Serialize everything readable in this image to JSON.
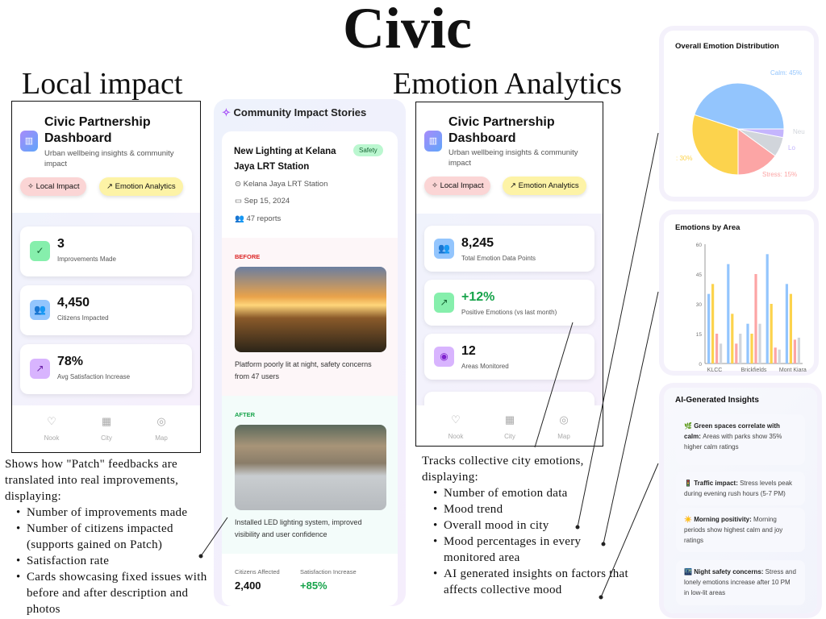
{
  "poster": {
    "title": "Civic",
    "section_local": "Local impact",
    "section_emotion": "Emotion Analytics"
  },
  "app": {
    "title": "Civic Partnership Dashboard",
    "subtitle": "Urban wellbeing insights & community impact",
    "tabs": [
      {
        "label": "Local Impact",
        "icon": "sparkle-icon"
      },
      {
        "label": "Emotion Analytics",
        "icon": "trending-up-icon"
      }
    ],
    "nav": [
      {
        "label": "Nook",
        "icon": "heart-icon"
      },
      {
        "label": "City",
        "icon": "building-icon"
      },
      {
        "label": "Map",
        "icon": "map-pin-icon"
      }
    ]
  },
  "local_impact": {
    "stats": [
      {
        "value": "3",
        "label": "Improvements Made",
        "icon": "check-circle-icon",
        "color": "#86efac"
      },
      {
        "value": "4,450",
        "label": "Citizens Impacted",
        "icon": "users-icon",
        "color": "#93c5fd"
      },
      {
        "value": "78%",
        "label": "Avg Satisfaction Increase",
        "icon": "trending-up-icon",
        "color": "#d8b4fe"
      }
    ],
    "description": "Shows how \"Patch\" feedbacks are translated into real improvements, displaying:",
    "bullets": [
      "Number of improvements made",
      "Number of citizens impacted (supports gained on Patch)",
      "Satisfaction rate",
      "Cards showcasing fixed issues with before and after description and photos"
    ]
  },
  "stories": {
    "header": "Community Impact Stories",
    "story": {
      "title": "New Lighting at Kelana Jaya LRT Station",
      "tag": "Safety",
      "location": "Kelana Jaya LRT Station",
      "date": "Sep 15, 2024",
      "reports": "47 reports",
      "before_label": "BEFORE",
      "before_text": "Platform poorly lit at night, safety concerns from 47 users",
      "after_label": "AFTER",
      "after_text": "Installed LED lighting system, improved visibility and user confidence",
      "citizens_label": "Citizens Affected",
      "citizens_value": "2,400",
      "satisfaction_label": "Satisfaction Increase",
      "satisfaction_value": "+85%"
    }
  },
  "emotion": {
    "stats": [
      {
        "value": "8,245",
        "label": "Total Emotion Data Points",
        "icon": "users-icon",
        "color": "#93c5fd"
      },
      {
        "value": "+12%",
        "label": "Positive Emotions (vs last month)",
        "icon": "trending-up-icon",
        "color": "#86efac"
      },
      {
        "value": "12",
        "label": "Areas Monitored",
        "icon": "map-pin-icon",
        "color": "#d8b4fe"
      }
    ],
    "description": "Tracks collective city emotions, displaying:",
    "bullets": [
      "Number of emotion data",
      "Mood trend",
      "Overall mood in city",
      "Mood percentages in every monitored area",
      "AI generated insights on factors that affects collective mood"
    ]
  },
  "chart_data": [
    {
      "type": "pie",
      "title": "Overall Emotion Distribution",
      "slices": [
        {
          "label": "Calm: 45%",
          "value": 45,
          "color": "#93c5fd"
        },
        {
          "label": ": 30%",
          "value": 30,
          "color": "#fcd34d"
        },
        {
          "label": "Stress: 15%",
          "value": 15,
          "color": "#fca5a5"
        },
        {
          "label": "Neu",
          "value": 7,
          "color": "#d1d5db"
        },
        {
          "label": "Lo",
          "value": 3,
          "color": "#c4b5fd"
        }
      ]
    },
    {
      "type": "bar",
      "title": "Emotions by Area",
      "categories": [
        "KLCC",
        "",
        "Brickfields",
        "",
        "Mont Kiara"
      ],
      "ylim": [
        0,
        60
      ],
      "yticks": [
        0,
        15,
        30,
        45,
        60
      ],
      "series": [
        {
          "values": [
            35,
            50,
            20,
            55,
            40
          ],
          "color": "#93c5fd"
        },
        {
          "values": [
            40,
            25,
            15,
            30,
            35
          ],
          "color": "#fcd34d"
        },
        {
          "values": [
            15,
            10,
            45,
            8,
            12
          ],
          "color": "#fca5a5"
        },
        {
          "values": [
            10,
            15,
            20,
            7,
            13
          ],
          "color": "#d1d5db"
        }
      ]
    }
  ],
  "insights": {
    "title": "AI-Generated Insights",
    "items": [
      {
        "emoji": "🌿",
        "bold": "Green spaces correlate with calm:",
        "text": "Areas with parks show 35% higher calm ratings"
      },
      {
        "emoji": "🚦",
        "bold": "Traffic impact:",
        "text": "Stress levels peak during evening rush hours (5-7 PM)"
      },
      {
        "emoji": "☀️",
        "bold": "Morning positivity:",
        "text": "Morning periods show highest calm and joy ratings"
      },
      {
        "emoji": "🌃",
        "bold": "Night safety concerns:",
        "text": "Stress and lonely emotions increase after 10 PM in low-lit areas"
      }
    ]
  }
}
